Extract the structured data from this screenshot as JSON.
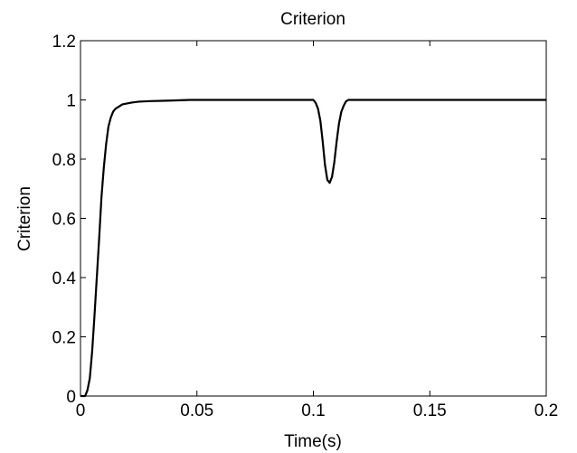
{
  "chart_data": {
    "type": "line",
    "title": "Criterion",
    "xlabel": "Time(s)",
    "ylabel": "Criterion",
    "xlim": [
      0,
      0.2
    ],
    "ylim": [
      0,
      1.2
    ],
    "xticks": [
      0,
      0.05,
      0.1,
      0.15,
      0.2
    ],
    "xtick_labels": [
      "0",
      "0.05",
      "0.1",
      "0.15",
      "0.2"
    ],
    "yticks": [
      0,
      0.2,
      0.4,
      0.6,
      0.8,
      1,
      1.2
    ],
    "ytick_labels": [
      "0",
      "0.2",
      "0.4",
      "0.6",
      "0.8",
      "1",
      "1.2"
    ],
    "grid": false,
    "line_color": "#000000",
    "series": [
      {
        "x": [
          0,
          0.002,
          0.003,
          0.004,
          0.005,
          0.006,
          0.007,
          0.008,
          0.009,
          0.01,
          0.011,
          0.012,
          0.013,
          0.014,
          0.015,
          0.016,
          0.017,
          0.018,
          0.02,
          0.022,
          0.025,
          0.03,
          0.035,
          0.04,
          0.047,
          0.06,
          0.08,
          0.1,
          0.101,
          0.102,
          0.103,
          0.104,
          0.105,
          0.106,
          0.107,
          0.108,
          0.109,
          0.11,
          0.111,
          0.112,
          0.113,
          0.114,
          0.115,
          0.13,
          0.16,
          0.2
        ],
        "y": [
          0,
          0,
          0.02,
          0.06,
          0.15,
          0.27,
          0.4,
          0.53,
          0.67,
          0.77,
          0.85,
          0.91,
          0.94,
          0.96,
          0.97,
          0.975,
          0.98,
          0.985,
          0.988,
          0.991,
          0.994,
          0.996,
          0.997,
          0.998,
          1.0,
          1.0,
          1.0,
          1.0,
          0.99,
          0.97,
          0.93,
          0.86,
          0.78,
          0.73,
          0.72,
          0.74,
          0.79,
          0.86,
          0.92,
          0.96,
          0.98,
          0.995,
          1.0,
          1.0,
          1.0,
          1.0
        ]
      }
    ]
  }
}
